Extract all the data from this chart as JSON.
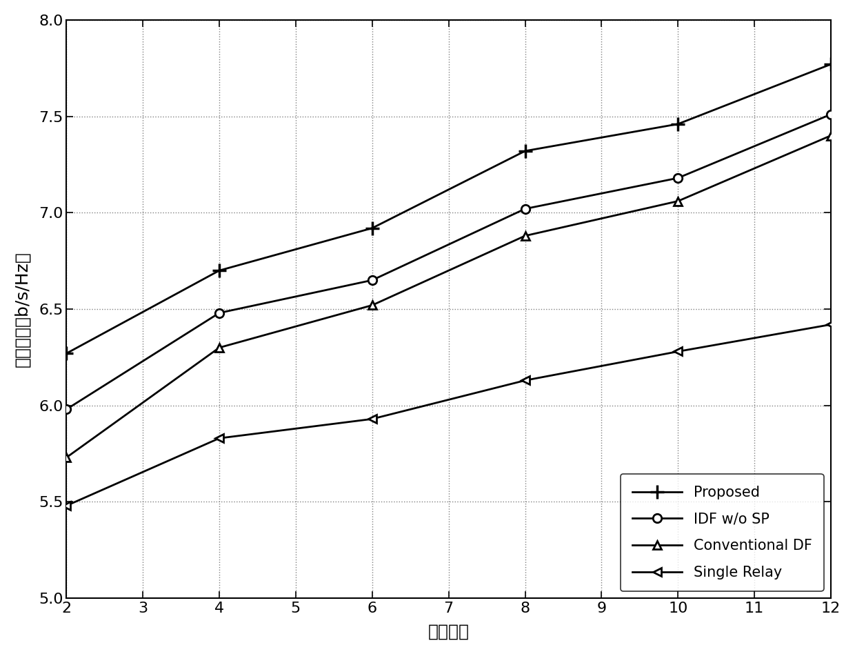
{
  "x": [
    2,
    4,
    6,
    8,
    10,
    12
  ],
  "proposed": [
    6.27,
    6.7,
    6.92,
    7.32,
    7.46,
    7.77
  ],
  "idf_wo_sp": [
    5.98,
    6.48,
    6.65,
    7.02,
    7.18,
    7.51
  ],
  "conventional_df": [
    5.73,
    6.3,
    6.52,
    6.88,
    7.06,
    7.4
  ],
  "single_relay": [
    5.48,
    5.83,
    5.93,
    6.13,
    6.28,
    6.42
  ],
  "xlabel": "中继数目",
  "ylabel": "系统容量（b/s/Hz）",
  "xlim": [
    2,
    12
  ],
  "ylim": [
    5.0,
    8.0
  ],
  "xticks": [
    2,
    3,
    4,
    5,
    6,
    7,
    8,
    9,
    10,
    11,
    12
  ],
  "yticks": [
    5.0,
    5.5,
    6.0,
    6.5,
    7.0,
    7.5,
    8.0
  ],
  "line_color": "#000000",
  "background_color": "#ffffff",
  "legend_proposed": "Proposed",
  "legend_idf": "IDF w/o SP",
  "legend_conv": "Conventional DF",
  "legend_single": "Single Relay",
  "label_fontsize": 18,
  "tick_fontsize": 16,
  "legend_fontsize": 15,
  "linewidth": 2.0,
  "markersize": 9
}
